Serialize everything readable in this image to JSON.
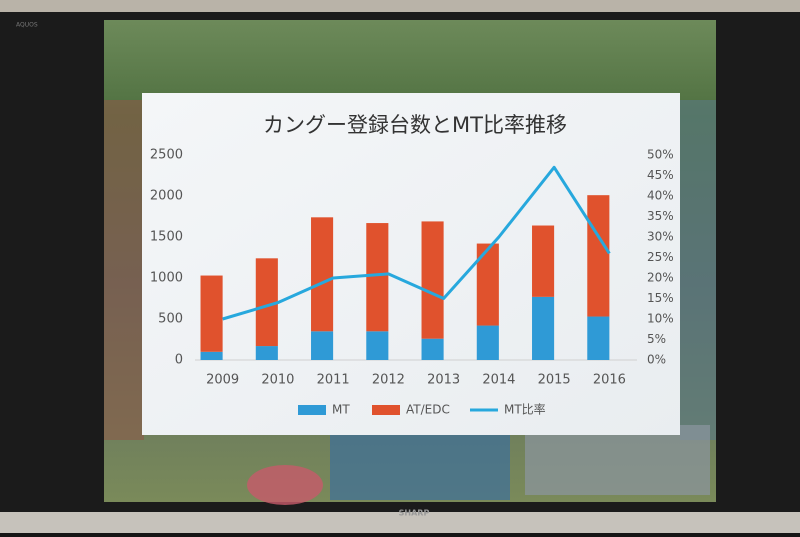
{
  "chart_data": {
    "type": "bar",
    "title": "カングー登録台数とMT比率推移",
    "categories": [
      "2009",
      "2010",
      "2011",
      "2012",
      "2013",
      "2014",
      "2015",
      "2016"
    ],
    "series": [
      {
        "name": "MT",
        "type": "bar",
        "color": "#2f9ad6",
        "values": [
          100,
          170,
          350,
          350,
          260,
          420,
          770,
          530
        ]
      },
      {
        "name": "AT/EDC",
        "type": "bar",
        "color": "#e0522d",
        "values": [
          930,
          1070,
          1390,
          1320,
          1430,
          1000,
          870,
          1480
        ]
      },
      {
        "name": "MT比率",
        "type": "line",
        "axis": "y2",
        "color": "#27a8dd",
        "values": [
          10,
          14,
          20,
          21,
          15,
          30,
          47,
          26
        ]
      }
    ],
    "stacked": true,
    "ylim": [
      0,
      2500
    ],
    "yticks": [
      0,
      500,
      1000,
      1500,
      2000,
      2500
    ],
    "y2lim": [
      0,
      50
    ],
    "y2ticks": [
      {
        "value": 0,
        "label": "0%"
      },
      {
        "value": 5,
        "label": "5%"
      },
      {
        "value": 10,
        "label": "10%"
      },
      {
        "value": 15,
        "label": "15%"
      },
      {
        "value": 20,
        "label": "20%"
      },
      {
        "value": 25,
        "label": "25%"
      },
      {
        "value": 30,
        "label": "30%"
      },
      {
        "value": 35,
        "label": "35%"
      },
      {
        "value": 40,
        "label": "40%"
      },
      {
        "value": 45,
        "label": "45%"
      },
      {
        "value": 50,
        "label": "50%"
      }
    ],
    "grid": false,
    "legend": "bottom"
  },
  "bezel": {
    "brand": "SHARP",
    "model": "AQUOS"
  }
}
